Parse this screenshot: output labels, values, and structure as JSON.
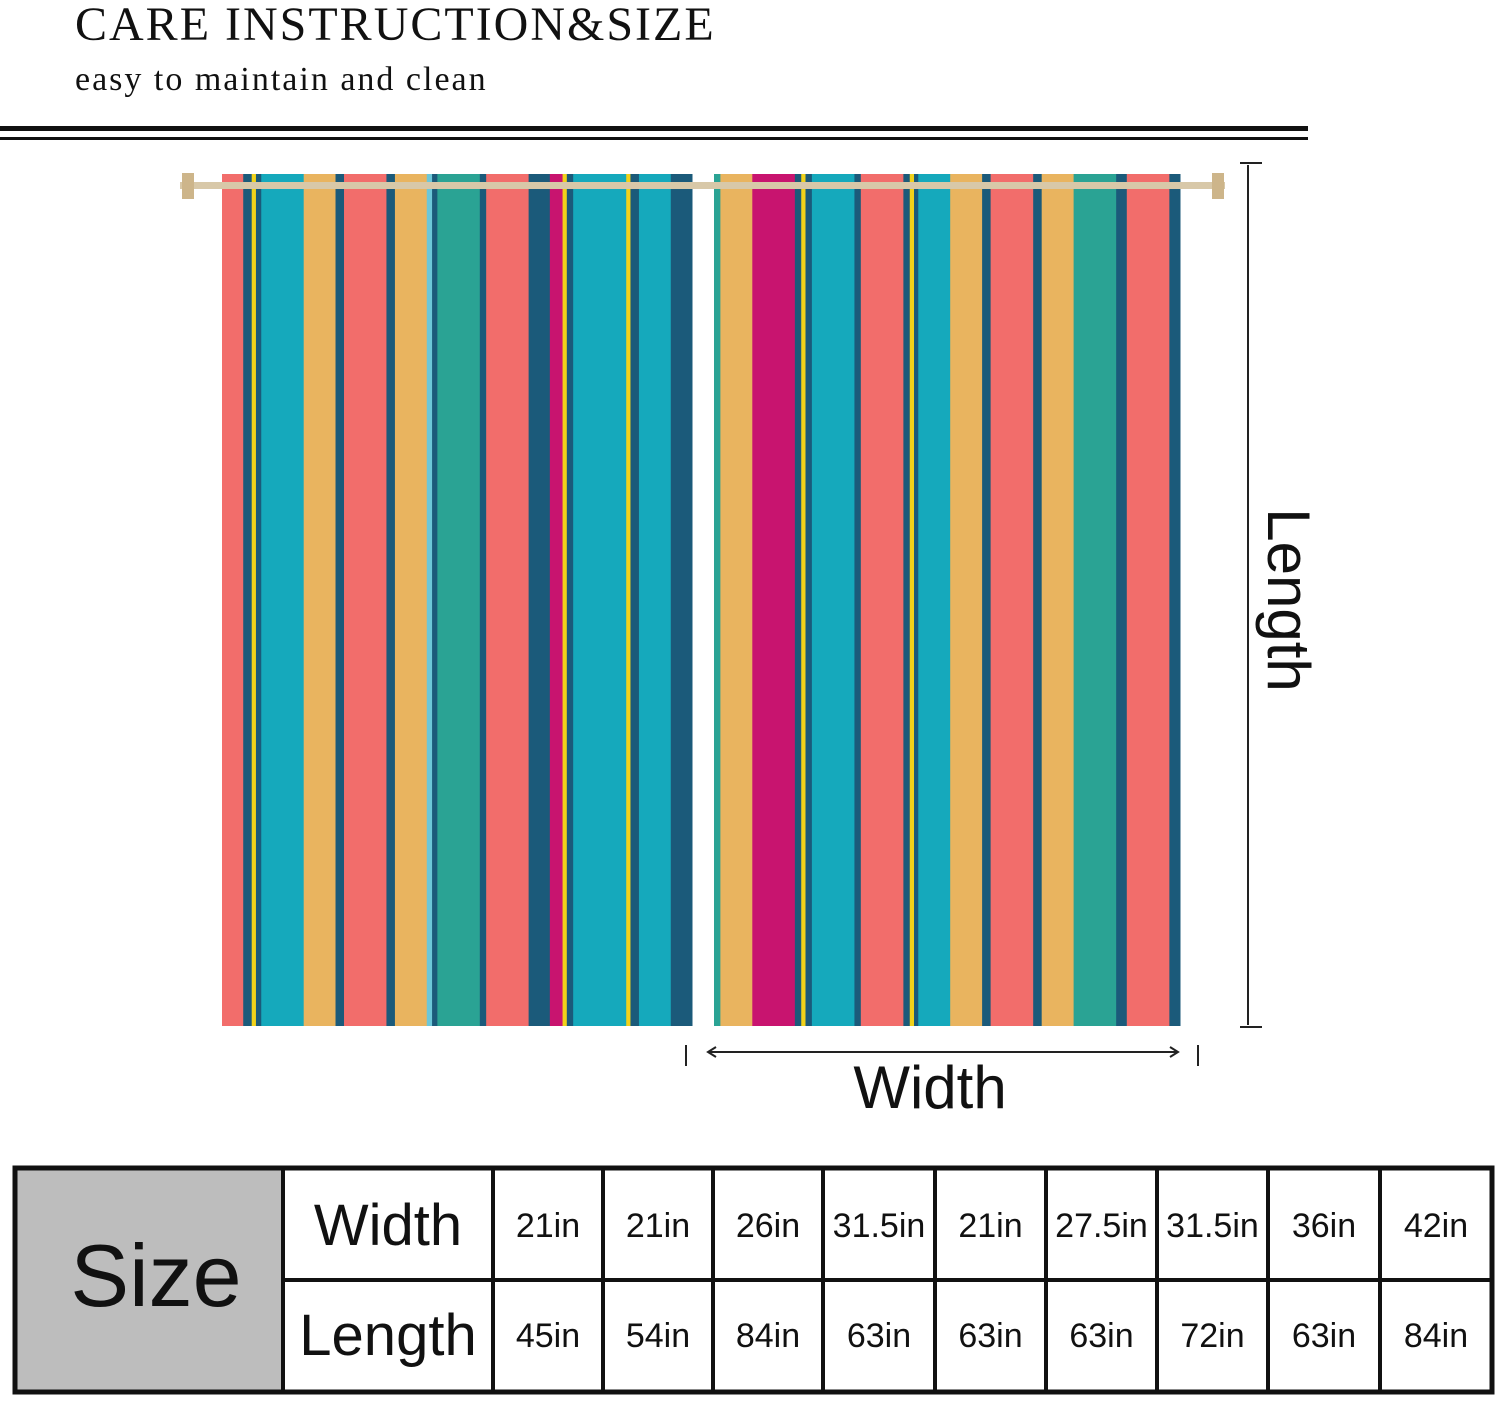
{
  "header": {
    "title": "CARE INSTRUCTION&SIZE",
    "subtitle": "easy to maintain and clean"
  },
  "diagram": {
    "length_label": "Length",
    "width_label": "Width"
  },
  "table": {
    "corner": "Size",
    "rows": [
      {
        "label": "Width",
        "cells": [
          "21in",
          "21in",
          "26in",
          "31.5in",
          "21in",
          "27.5in",
          "31.5in",
          "36in",
          "42in"
        ]
      },
      {
        "label": "Length",
        "cells": [
          "45in",
          "54in",
          "84in",
          "63in",
          "63in",
          "63in",
          "72in",
          "63in",
          "84in"
        ]
      }
    ]
  }
}
